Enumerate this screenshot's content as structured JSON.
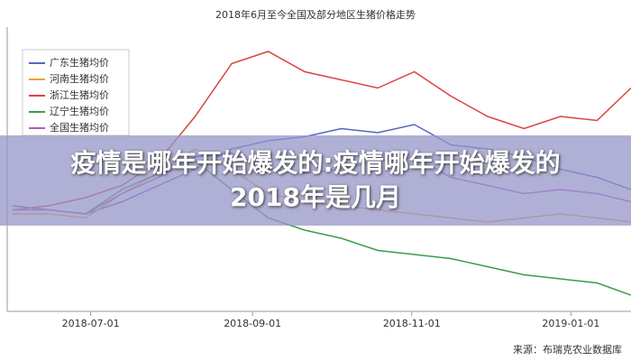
{
  "chart_data": {
    "type": "line",
    "title": "2018年6月至今全国及部分地区生猪价格走势",
    "source": "来源：布瑞克农业数据库",
    "x": [
      "2018-06-01",
      "2018-06-15",
      "2018-06-29",
      "2018-07-13",
      "2018-07-27",
      "2018-08-10",
      "2018-08-24",
      "2018-09-07",
      "2018-09-21",
      "2018-10-05",
      "2018-10-19",
      "2018-11-02",
      "2018-11-16",
      "2018-11-30",
      "2018-12-14",
      "2018-12-28",
      "2019-01-11",
      "2019-01-24"
    ],
    "xlim": [
      "2018-05-30",
      "2019-01-24"
    ],
    "xticks": [
      "2018-07-01",
      "2018-09-01",
      "2018-11-01",
      "2019-01-01"
    ],
    "ylim": [
      9.5,
      16.5
    ],
    "legend": "top-left",
    "series": [
      {
        "name": "广东生猪均价",
        "color": "#5566c0",
        "values": [
          12.1,
          12.0,
          11.9,
          12.2,
          12.6,
          13.0,
          13.5,
          13.7,
          13.8,
          14.0,
          13.9,
          14.1,
          13.6,
          13.5,
          13.3,
          13.0,
          12.8,
          12.5
        ]
      },
      {
        "name": "河南生猪均价",
        "color": "#e9a23b",
        "values": [
          11.9,
          11.9,
          11.8,
          12.4,
          12.9,
          13.5,
          13.0,
          12.4,
          12.2,
          12.1,
          12.0,
          11.9,
          11.8,
          11.7,
          11.8,
          11.9,
          11.8,
          11.7
        ]
      },
      {
        "name": "浙江生猪均价",
        "color": "#d9453f",
        "values": [
          12.0,
          12.1,
          12.3,
          12.6,
          13.2,
          14.3,
          15.6,
          15.9,
          15.4,
          15.2,
          15.0,
          15.4,
          14.8,
          14.3,
          14.0,
          14.3,
          14.2,
          15.0
        ]
      },
      {
        "name": "辽宁生猪均价",
        "color": "#3a9e48",
        "values": [
          12.0,
          12.0,
          11.9,
          12.5,
          12.9,
          13.2,
          12.5,
          11.8,
          11.5,
          11.3,
          11.0,
          10.9,
          10.8,
          10.6,
          10.4,
          10.3,
          10.2,
          9.9
        ]
      },
      {
        "name": "全国生猪均价",
        "color": "#b956c4",
        "values": [
          12.0,
          12.0,
          11.9,
          12.4,
          12.8,
          13.3,
          13.4,
          13.0,
          12.9,
          13.0,
          13.2,
          13.3,
          12.8,
          12.6,
          12.4,
          12.5,
          12.4,
          12.2
        ]
      }
    ]
  },
  "overlay": {
    "title": "疫情是哪年开始爆发的:疫情哪年开始爆发的2018年是几月"
  }
}
